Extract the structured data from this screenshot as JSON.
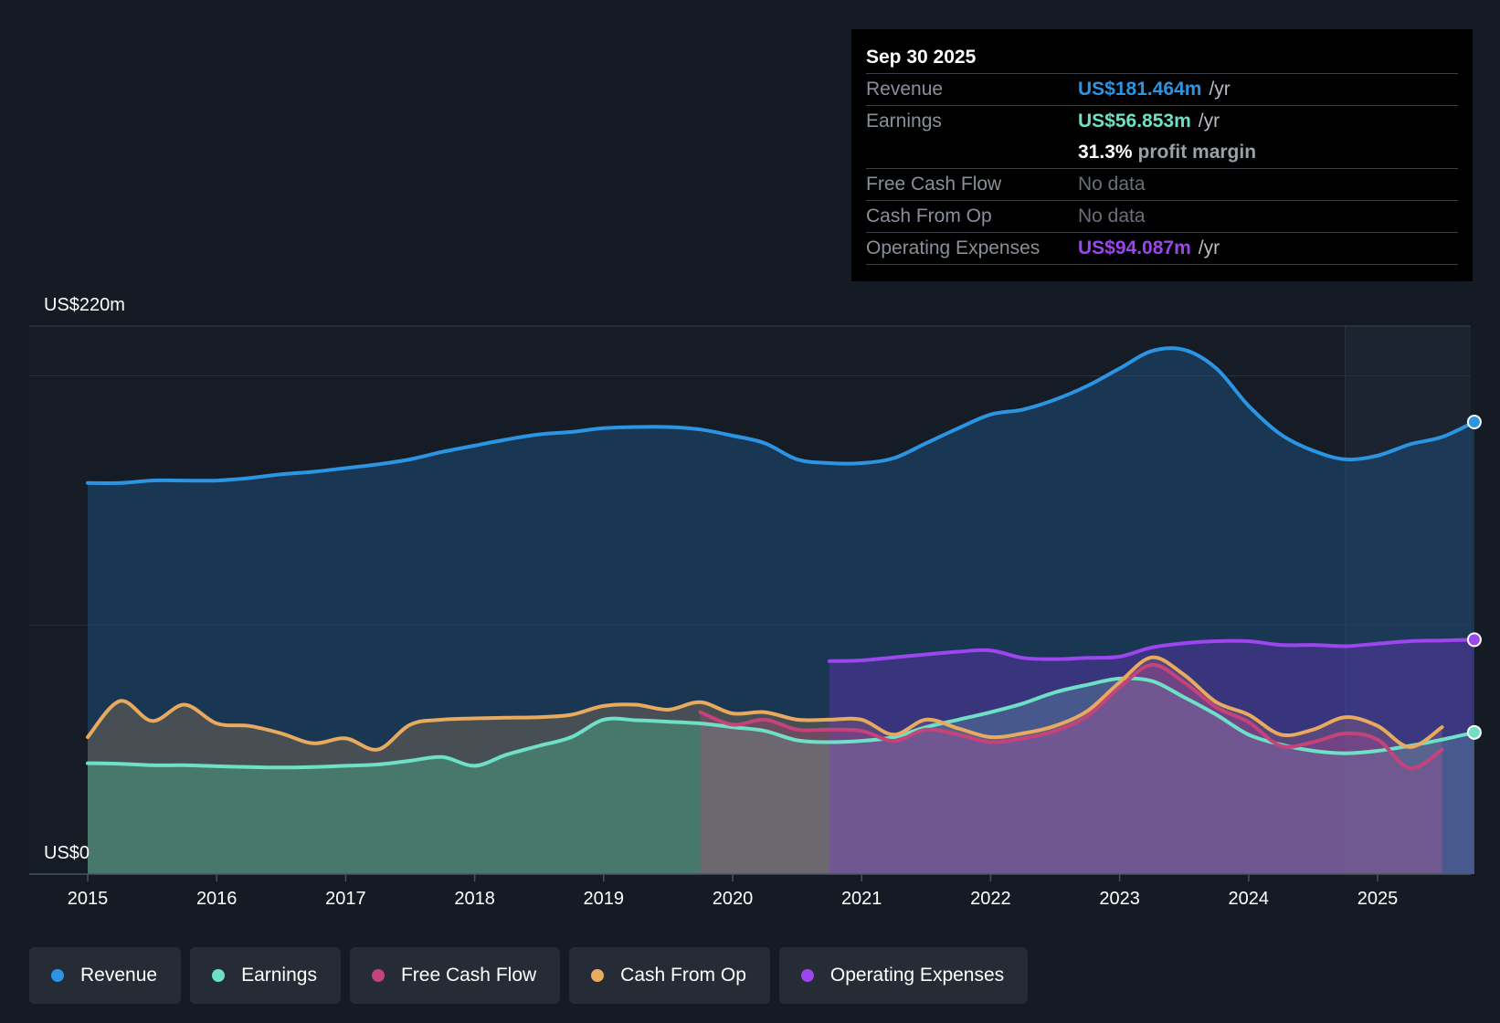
{
  "tooltip": {
    "date": "Sep 30 2025",
    "rows": {
      "revenue": {
        "label": "Revenue",
        "value": "US$181.464m",
        "unit": "/yr"
      },
      "earnings": {
        "label": "Earnings",
        "value": "US$56.853m",
        "unit": "/yr"
      },
      "margin": {
        "value": "31.3%",
        "text": "profit margin"
      },
      "fcf": {
        "label": "Free Cash Flow",
        "value": "No data"
      },
      "cfo": {
        "label": "Cash From Op",
        "value": "No data"
      },
      "opex": {
        "label": "Operating Expenses",
        "value": "US$94.087m",
        "unit": "/yr"
      }
    }
  },
  "legend": {
    "revenue": "Revenue",
    "earnings": "Earnings",
    "fcf": "Free Cash Flow",
    "cfo": "Cash From Op",
    "opex": "Operating Expenses"
  },
  "colors": {
    "revenue": "#2b95e3",
    "earnings": "#6ee0c6",
    "fcf": "#c4437b",
    "cfo": "#e8aa5e",
    "opex": "#9d45ee",
    "background": "#151b24"
  },
  "chart_data": {
    "type": "area",
    "ylim": [
      0,
      220
    ],
    "y_top_label": "US$220m",
    "y_bottom_label": "US$0",
    "x_ticks": [
      "2015",
      "2016",
      "2017",
      "2018",
      "2019",
      "2020",
      "2021",
      "2022",
      "2023",
      "2024",
      "2025"
    ],
    "forecast_start": 2024.75,
    "series": [
      {
        "name": "Revenue",
        "key": "revenue",
        "points": [
          [
            2015,
            157
          ],
          [
            2015.25,
            157
          ],
          [
            2015.5,
            158
          ],
          [
            2015.75,
            158
          ],
          [
            2016,
            158
          ],
          [
            2016.25,
            159
          ],
          [
            2016.5,
            160.5
          ],
          [
            2016.75,
            161.5
          ],
          [
            2017,
            163
          ],
          [
            2017.25,
            164.5
          ],
          [
            2017.5,
            166.5
          ],
          [
            2017.75,
            169.5
          ],
          [
            2018,
            172
          ],
          [
            2018.25,
            174.5
          ],
          [
            2018.5,
            176.5
          ],
          [
            2018.75,
            177.5
          ],
          [
            2019,
            179
          ],
          [
            2019.25,
            179.5
          ],
          [
            2019.5,
            179.5
          ],
          [
            2019.75,
            178.5
          ],
          [
            2020,
            176
          ],
          [
            2020.25,
            173
          ],
          [
            2020.5,
            166.5
          ],
          [
            2020.75,
            165
          ],
          [
            2021,
            165
          ],
          [
            2021.25,
            167
          ],
          [
            2021.5,
            173
          ],
          [
            2021.75,
            179
          ],
          [
            2022,
            184.5
          ],
          [
            2022.25,
            186.5
          ],
          [
            2022.5,
            190.5
          ],
          [
            2022.75,
            196
          ],
          [
            2023,
            203
          ],
          [
            2023.25,
            210
          ],
          [
            2023.5,
            210.5
          ],
          [
            2023.75,
            203
          ],
          [
            2024,
            188
          ],
          [
            2024.25,
            176.5
          ],
          [
            2024.5,
            170
          ],
          [
            2024.75,
            166.5
          ],
          [
            2025,
            168
          ],
          [
            2025.25,
            172.5
          ],
          [
            2025.5,
            175.5
          ],
          [
            2025.75,
            181.5
          ]
        ]
      },
      {
        "name": "Earnings",
        "key": "earnings",
        "points": [
          [
            2015,
            44.5
          ],
          [
            2015.25,
            44.3
          ],
          [
            2015.5,
            43.7
          ],
          [
            2015.75,
            43.7
          ],
          [
            2016,
            43.3
          ],
          [
            2016.25,
            43
          ],
          [
            2016.5,
            42.8
          ],
          [
            2016.75,
            43
          ],
          [
            2017,
            43.5
          ],
          [
            2017.25,
            44
          ],
          [
            2017.5,
            45.5
          ],
          [
            2017.75,
            47
          ],
          [
            2018,
            43.5
          ],
          [
            2018.25,
            48
          ],
          [
            2018.5,
            51.5
          ],
          [
            2018.75,
            55
          ],
          [
            2019,
            62
          ],
          [
            2019.25,
            61.8
          ],
          [
            2019.5,
            61.2
          ],
          [
            2019.75,
            60.5
          ],
          [
            2020,
            59
          ],
          [
            2020.25,
            57.5
          ],
          [
            2020.5,
            53.7
          ],
          [
            2020.75,
            53
          ],
          [
            2021,
            53.5
          ],
          [
            2021.25,
            55
          ],
          [
            2021.5,
            59
          ],
          [
            2021.75,
            62
          ],
          [
            2022,
            65
          ],
          [
            2022.25,
            68.5
          ],
          [
            2022.5,
            73
          ],
          [
            2022.75,
            76
          ],
          [
            2023,
            78.5
          ],
          [
            2023.25,
            77.5
          ],
          [
            2023.5,
            71
          ],
          [
            2023.75,
            64
          ],
          [
            2024,
            56
          ],
          [
            2024.25,
            52
          ],
          [
            2024.5,
            49.5
          ],
          [
            2024.75,
            48.5
          ],
          [
            2025,
            49.5
          ],
          [
            2025.25,
            51.5
          ],
          [
            2025.5,
            54
          ],
          [
            2025.75,
            56.9
          ]
        ]
      },
      {
        "name": "Free Cash Flow",
        "key": "fcf",
        "points": [
          [
            2019.75,
            65
          ],
          [
            2020,
            60
          ],
          [
            2020.25,
            62
          ],
          [
            2020.5,
            58
          ],
          [
            2020.75,
            58
          ],
          [
            2021,
            57.5
          ],
          [
            2021.25,
            53.5
          ],
          [
            2021.5,
            58
          ],
          [
            2021.75,
            56
          ],
          [
            2022,
            53
          ],
          [
            2022.25,
            54.5
          ],
          [
            2022.5,
            57.5
          ],
          [
            2022.75,
            63.5
          ],
          [
            2023,
            75
          ],
          [
            2023.25,
            84
          ],
          [
            2023.5,
            77
          ],
          [
            2023.75,
            67
          ],
          [
            2024,
            61
          ],
          [
            2024.25,
            51.5
          ],
          [
            2024.5,
            53
          ],
          [
            2024.75,
            56.5
          ],
          [
            2025,
            54
          ],
          [
            2025.25,
            42.5
          ],
          [
            2025.5,
            50
          ]
        ]
      },
      {
        "name": "Cash From Op",
        "key": "cfo",
        "points": [
          [
            2015,
            55
          ],
          [
            2015.25,
            69.5
          ],
          [
            2015.5,
            61.5
          ],
          [
            2015.75,
            68
          ],
          [
            2016,
            60.5
          ],
          [
            2016.25,
            59.5
          ],
          [
            2016.5,
            56.5
          ],
          [
            2016.75,
            52.5
          ],
          [
            2017,
            54.5
          ],
          [
            2017.25,
            50
          ],
          [
            2017.5,
            60
          ],
          [
            2017.75,
            62
          ],
          [
            2018,
            62.5
          ],
          [
            2018.25,
            62.8
          ],
          [
            2018.5,
            63
          ],
          [
            2018.75,
            64
          ],
          [
            2019,
            67.5
          ],
          [
            2019.25,
            68
          ],
          [
            2019.5,
            66
          ],
          [
            2019.75,
            69
          ],
          [
            2020,
            64.5
          ],
          [
            2020.25,
            65
          ],
          [
            2020.5,
            62
          ],
          [
            2020.75,
            62
          ],
          [
            2021,
            62
          ],
          [
            2021.25,
            56
          ],
          [
            2021.5,
            62
          ],
          [
            2021.75,
            58.5
          ],
          [
            2022,
            55
          ],
          [
            2022.25,
            56.5
          ],
          [
            2022.5,
            59.5
          ],
          [
            2022.75,
            65.5
          ],
          [
            2023,
            77
          ],
          [
            2023.25,
            87
          ],
          [
            2023.5,
            80
          ],
          [
            2023.75,
            69
          ],
          [
            2024,
            64
          ],
          [
            2024.25,
            56
          ],
          [
            2024.5,
            58
          ],
          [
            2024.75,
            63
          ],
          [
            2025,
            59.5
          ],
          [
            2025.25,
            51
          ],
          [
            2025.5,
            59
          ]
        ]
      },
      {
        "name": "Operating Expenses",
        "key": "opex",
        "points": [
          [
            2020.75,
            85.5
          ],
          [
            2021,
            85.8
          ],
          [
            2021.25,
            87
          ],
          [
            2021.5,
            88.2
          ],
          [
            2021.75,
            89.3
          ],
          [
            2022,
            89.8
          ],
          [
            2022.25,
            86.8
          ],
          [
            2022.5,
            86.3
          ],
          [
            2022.75,
            86.8
          ],
          [
            2023,
            87.3
          ],
          [
            2023.25,
            91
          ],
          [
            2023.5,
            92.7
          ],
          [
            2023.75,
            93.5
          ],
          [
            2024,
            93.5
          ],
          [
            2024.25,
            92
          ],
          [
            2024.5,
            92
          ],
          [
            2024.75,
            91.5
          ],
          [
            2025,
            92.5
          ],
          [
            2025.25,
            93.5
          ],
          [
            2025.5,
            93.8
          ],
          [
            2025.75,
            94.1
          ]
        ]
      }
    ]
  }
}
